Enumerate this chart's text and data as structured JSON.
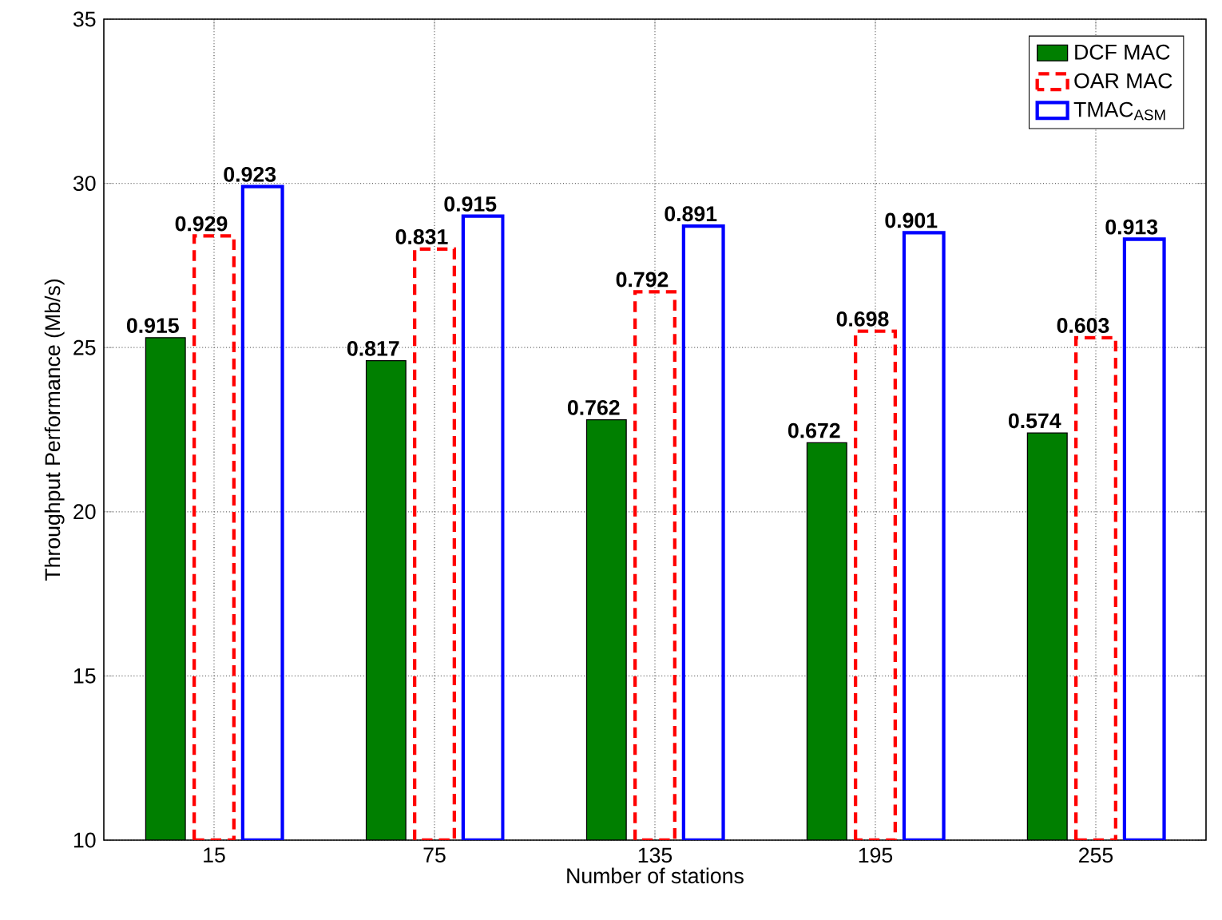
{
  "chart_data": {
    "type": "bar",
    "xlabel": "Number of stations",
    "ylabel": "Throughput Performance (Mb/s)",
    "categories": [
      "15",
      "75",
      "135",
      "195",
      "255"
    ],
    "series": [
      {
        "name": "DCF MAC",
        "color": "#007f00",
        "line_style": "solid",
        "values": [
          25.3,
          24.6,
          22.8,
          22.1,
          22.4
        ]
      },
      {
        "name": "OAR MAC",
        "color": "#ff0000",
        "line_style": "dashed",
        "values": [
          28.4,
          28.0,
          26.7,
          25.5,
          25.3
        ]
      },
      {
        "name": "TMAC$_{ASM}$",
        "color": "#0000ff",
        "line_style": "solid",
        "values": [
          29.9,
          29.0,
          28.7,
          28.5,
          28.3
        ]
      }
    ],
    "annotations": [
      "0.915",
      "0.817",
      "0.762",
      "0.672",
      "0.574",
      "0.929",
      "0.831",
      "0.792",
      "0.698",
      "0.603",
      "0.923",
      "0.915",
      "0.891",
      "0.901",
      "0.913"
    ],
    "ylim": [
      10,
      35
    ],
    "yticks": [
      10,
      15,
      20,
      25,
      30,
      35
    ],
    "grid": true,
    "legend": "top right"
  }
}
